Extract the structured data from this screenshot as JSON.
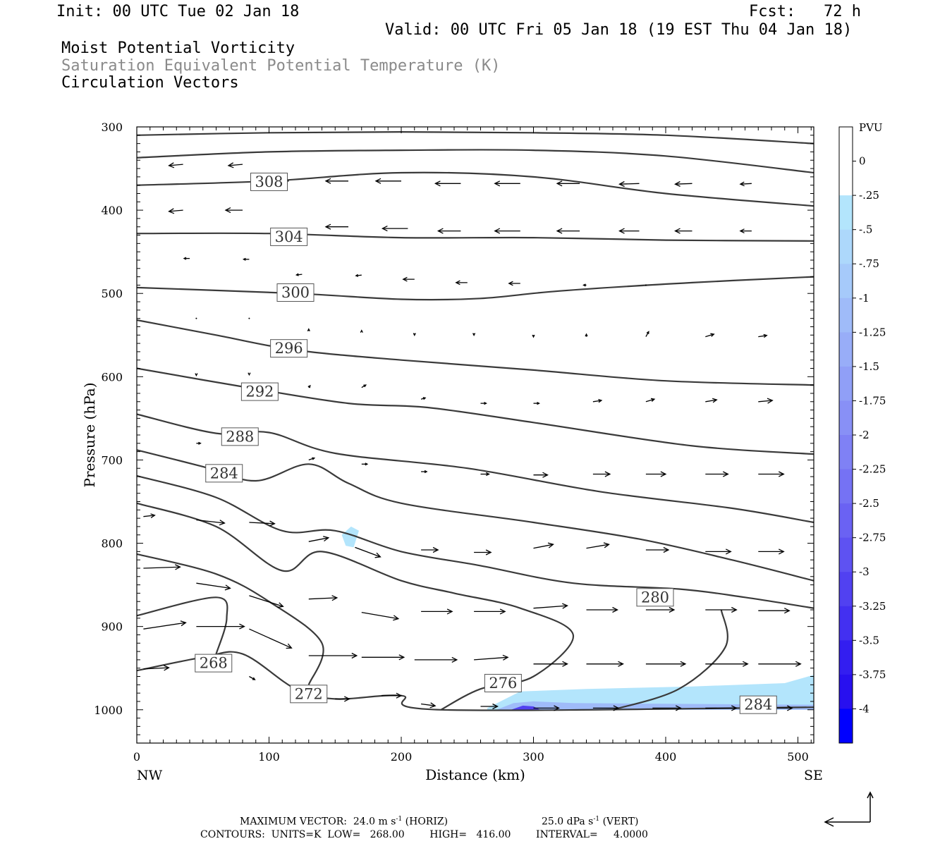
{
  "header": {
    "init": "Init: 00 UTC Tue 02 Jan 18",
    "fcst": "Fcst:   72 h",
    "valid": "Valid: 00 UTC Fri 05 Jan 18 (19 EST Thu 04 Jan 18)",
    "field1": "Moist Potential Vorticity",
    "field2": "Saturation Equivalent Potential Temperature (K)",
    "field3": "Circulation Vectors"
  },
  "footer": {
    "max_vector_prefix": "MAXIMUM VECTOR:  24.0 m s",
    "max_vector_horiz": " (HORIZ)",
    "max_vector_vert_prefix": "25.0 dPa s",
    "max_vector_vert": " (VERT)",
    "exponent": "-1",
    "contours": "CONTOURS:  UNITS=K  LOW=   268.00        HIGH=   416.00        INTERVAL=     4.0000"
  },
  "chart_data": {
    "type": "cross-section",
    "xlabel": "Distance (km)",
    "ylabel": "Pressure (hPa)",
    "x_ticks": [
      0,
      100,
      200,
      300,
      400,
      500
    ],
    "y_ticks": [
      300,
      400,
      500,
      600,
      700,
      800,
      900,
      1000
    ],
    "xlim": [
      0,
      512
    ],
    "ylim": [
      300,
      1040
    ],
    "left_end_label": "NW",
    "right_end_label": "SE",
    "colorbar": {
      "unit": "PVU",
      "labels": [
        "0",
        "-.25",
        "-.5",
        "-.75",
        "-1",
        "-1.25",
        "-1.5",
        "-1.75",
        "-2",
        "-2.25",
        "-2.5",
        "-2.75",
        "-3",
        "-3.25",
        "-3.5",
        "-3.75",
        "-4"
      ],
      "colors": [
        "#ffffff",
        "#ffffff",
        "#b3e5fc",
        "#add8fb",
        "#a6cafa",
        "#9fbbf9",
        "#98adf8",
        "#909ff7",
        "#8890f6",
        "#7f81f5",
        "#7572f4",
        "#6a62f3",
        "#5e52f2",
        "#5141f1",
        "#4330f1",
        "#331ef0",
        "#2810ef",
        "#0000ff"
      ]
    },
    "theta_e_contours": [
      {
        "label": "308",
        "points": [
          [
            0,
            370
          ],
          [
            100,
            365
          ],
          [
            200,
            355
          ],
          [
            300,
            360
          ],
          [
            400,
            380
          ],
          [
            512,
            395
          ]
        ],
        "label_at": [
          100,
          366
        ]
      },
      {
        "label": "304",
        "points": [
          [
            0,
            428
          ],
          [
            100,
            428
          ],
          [
            200,
            433
          ],
          [
            300,
            433
          ],
          [
            400,
            436
          ],
          [
            512,
            437
          ]
        ],
        "label_at": [
          115,
          432
        ]
      },
      {
        "label": "300",
        "points": [
          [
            0,
            493
          ],
          [
            120,
            500
          ],
          [
            200,
            507
          ],
          [
            260,
            506
          ],
          [
            320,
            497
          ],
          [
            420,
            487
          ],
          [
            512,
            480
          ]
        ],
        "label_at": [
          120,
          499
        ]
      },
      {
        "label": "296",
        "points": [
          [
            0,
            532
          ],
          [
            60,
            550
          ],
          [
            120,
            568
          ],
          [
            200,
            580
          ],
          [
            300,
            592
          ],
          [
            400,
            605
          ],
          [
            512,
            610
          ]
        ],
        "label_at": [
          115,
          566
        ]
      },
      {
        "label": "292",
        "points": [
          [
            0,
            590
          ],
          [
            80,
            612
          ],
          [
            160,
            632
          ],
          [
            220,
            637
          ],
          [
            300,
            655
          ],
          [
            420,
            683
          ],
          [
            512,
            693
          ]
        ],
        "label_at": [
          93,
          618
        ]
      },
      {
        "label": "288",
        "points": [
          [
            0,
            645
          ],
          [
            60,
            668
          ],
          [
            100,
            667
          ],
          [
            150,
            692
          ],
          [
            250,
            710
          ],
          [
            350,
            738
          ],
          [
            450,
            758
          ],
          [
            512,
            775
          ]
        ],
        "label_at": [
          78,
          672
        ]
      },
      {
        "label": "284",
        "points": [
          [
            0,
            688
          ],
          [
            50,
            708
          ],
          [
            90,
            725
          ],
          [
            130,
            705
          ],
          [
            160,
            728
          ],
          [
            200,
            752
          ],
          [
            300,
            775
          ],
          [
            380,
            795
          ],
          [
            450,
            820
          ],
          [
            512,
            845
          ]
        ],
        "label_at": [
          66,
          716
        ]
      },
      {
        "label": "280",
        "points": [
          [
            0,
            719
          ],
          [
            60,
            745
          ],
          [
            110,
            785
          ],
          [
            150,
            785
          ],
          [
            200,
            810
          ],
          [
            260,
            827
          ],
          [
            330,
            848
          ],
          [
            410,
            855
          ],
          [
            460,
            865
          ],
          [
            512,
            878
          ]
        ],
        "label_at": [
          392,
          865
        ]
      },
      {
        "label": "276",
        "points": [
          [
            0,
            752
          ],
          [
            60,
            780
          ],
          [
            110,
            833
          ],
          [
            140,
            810
          ],
          [
            200,
            845
          ],
          [
            240,
            860
          ],
          [
            290,
            878
          ],
          [
            330,
            910
          ],
          [
            300,
            960
          ],
          [
            260,
            975
          ],
          [
            230,
            1000
          ]
        ],
        "label_at": [
          277,
          968
        ]
      },
      {
        "label": "284",
        "points": [
          [
            360,
            1000
          ],
          [
            410,
            975
          ],
          [
            445,
            925
          ],
          [
            442,
            880
          ]
        ],
        "label_at": [
          470,
          994
        ]
      },
      {
        "label": "272",
        "points": [
          [
            0,
            813
          ],
          [
            60,
            837
          ],
          [
            100,
            870
          ],
          [
            140,
            920
          ],
          [
            130,
            970
          ]
        ],
        "label_at": [
          130,
          981
        ]
      },
      {
        "label": "268",
        "points": [
          [
            0,
            953
          ],
          [
            50,
            937
          ],
          [
            80,
            933
          ],
          [
            120,
            975
          ],
          [
            150,
            987
          ],
          [
            200,
            983
          ],
          [
            230,
            1000
          ],
          [
            512,
            997
          ]
        ],
        "label_at": [
          58,
          944
        ]
      },
      {
        "label": "",
        "points": [
          [
            0,
            887
          ],
          [
            60,
            865
          ],
          [
            68,
            890
          ],
          [
            60,
            933
          ]
        ],
        "label_at": null
      },
      {
        "label": "",
        "points": [
          [
            0,
            337
          ],
          [
            100,
            330
          ],
          [
            200,
            328
          ],
          [
            300,
            328
          ],
          [
            400,
            335
          ],
          [
            512,
            355
          ]
        ],
        "label_at": null
      },
      {
        "label": "",
        "points": [
          [
            0,
            310
          ],
          [
            100,
            307
          ],
          [
            200,
            306
          ],
          [
            300,
            307
          ],
          [
            400,
            310
          ],
          [
            512,
            320
          ]
        ],
        "label_at": null
      }
    ],
    "negative_pv_regions": [
      {
        "value": -0.25,
        "points": [
          [
            265,
            998
          ],
          [
            290,
            978
          ],
          [
            340,
            975
          ],
          [
            420,
            972
          ],
          [
            490,
            968
          ],
          [
            512,
            958
          ],
          [
            512,
            1000
          ],
          [
            265,
            1000
          ]
        ]
      },
      {
        "value": -1.0,
        "points": [
          [
            272,
            1000
          ],
          [
            285,
            992
          ],
          [
            300,
            990
          ],
          [
            330,
            992
          ],
          [
            512,
            994
          ],
          [
            512,
            1000
          ]
        ]
      },
      {
        "value": -3.0,
        "points": [
          [
            283,
            1000
          ],
          [
            292,
            995
          ],
          [
            300,
            996
          ],
          [
            305,
            1000
          ]
        ]
      },
      {
        "value": -0.25,
        "points": [
          [
            155,
            790
          ],
          [
            162,
            780
          ],
          [
            168,
            785
          ],
          [
            164,
            805
          ],
          [
            158,
            803
          ]
        ]
      }
    ],
    "circulation_vectors": [
      [
        35,
        345,
        -10,
        2
      ],
      [
        80,
        345,
        -10,
        2
      ],
      [
        115,
        365,
        -14,
        0
      ],
      [
        160,
        365,
        -16,
        0
      ],
      [
        200,
        365,
        -18,
        0
      ],
      [
        245,
        368,
        -18,
        0
      ],
      [
        290,
        368,
        -18,
        0
      ],
      [
        335,
        368,
        -16,
        0
      ],
      [
        380,
        368,
        -14,
        1
      ],
      [
        420,
        368,
        -12,
        1
      ],
      [
        465,
        368,
        -8,
        1
      ],
      [
        35,
        400,
        -10,
        2
      ],
      [
        80,
        400,
        -12,
        0
      ],
      [
        160,
        420,
        -16,
        0
      ],
      [
        205,
        422,
        -18,
        0
      ],
      [
        245,
        425,
        -16,
        0
      ],
      [
        290,
        425,
        -18,
        0
      ],
      [
        335,
        425,
        -16,
        0
      ],
      [
        380,
        425,
        -14,
        0
      ],
      [
        420,
        425,
        -12,
        0
      ],
      [
        465,
        425,
        -8,
        0
      ],
      [
        40,
        458,
        -4,
        0
      ],
      [
        85,
        459,
        -4,
        0
      ],
      [
        125,
        477,
        -4,
        1
      ],
      [
        170,
        478,
        -4,
        1
      ],
      [
        210,
        483,
        -8,
        0
      ],
      [
        250,
        487,
        -8,
        0
      ],
      [
        290,
        488,
        -8,
        0
      ],
      [
        340,
        490,
        -2,
        0
      ],
      [
        385,
        490,
        0,
        0
      ],
      [
        45,
        530,
        0,
        0
      ],
      [
        85,
        530,
        0,
        0
      ],
      [
        130,
        545,
        0,
        -3
      ],
      [
        170,
        546,
        0,
        -2
      ],
      [
        210,
        548,
        0,
        3
      ],
      [
        255,
        548,
        0,
        3
      ],
      [
        300,
        550,
        0,
        3
      ],
      [
        340,
        552,
        0,
        -4
      ],
      [
        385,
        552,
        2,
        -8
      ],
      [
        430,
        552,
        6,
        -4
      ],
      [
        470,
        552,
        6,
        -2
      ],
      [
        45,
        597,
        0,
        2
      ],
      [
        85,
        597,
        0,
        1
      ],
      [
        130,
        613,
        1,
        -3
      ],
      [
        170,
        613,
        3,
        -4
      ],
      [
        215,
        627,
        3,
        -2
      ],
      [
        260,
        632,
        4,
        0
      ],
      [
        300,
        632,
        4,
        0
      ],
      [
        345,
        630,
        6,
        -2
      ],
      [
        385,
        630,
        6,
        -4
      ],
      [
        430,
        630,
        8,
        -3
      ],
      [
        470,
        630,
        10,
        -2
      ],
      [
        45,
        680,
        3,
        0
      ],
      [
        130,
        700,
        4,
        -3
      ],
      [
        170,
        705,
        4,
        0
      ],
      [
        215,
        714,
        4,
        0
      ],
      [
        260,
        717,
        6,
        0
      ],
      [
        300,
        718,
        10,
        0
      ],
      [
        345,
        717,
        12,
        0
      ],
      [
        385,
        717,
        14,
        0
      ],
      [
        430,
        717,
        16,
        0
      ],
      [
        470,
        717,
        18,
        0
      ],
      [
        5,
        768,
        8,
        -2
      ],
      [
        45,
        772,
        20,
        5
      ],
      [
        85,
        775,
        18,
        2
      ],
      [
        130,
        798,
        14,
        -6
      ],
      [
        165,
        805,
        18,
        15
      ],
      [
        215,
        808,
        12,
        0
      ],
      [
        255,
        811,
        12,
        0
      ],
      [
        300,
        806,
        14,
        -6
      ],
      [
        340,
        806,
        16,
        -6
      ],
      [
        385,
        808,
        16,
        0
      ],
      [
        430,
        810,
        18,
        0
      ],
      [
        470,
        810,
        18,
        0
      ],
      [
        5,
        830,
        26,
        -2
      ],
      [
        45,
        848,
        24,
        8
      ],
      [
        85,
        863,
        24,
        17
      ],
      [
        130,
        867,
        20,
        -2
      ],
      [
        170,
        883,
        26,
        10
      ],
      [
        215,
        882,
        22,
        0
      ],
      [
        255,
        882,
        22,
        0
      ],
      [
        300,
        878,
        24,
        -4
      ],
      [
        340,
        880,
        22,
        0
      ],
      [
        385,
        880,
        20,
        0
      ],
      [
        430,
        880,
        22,
        0
      ],
      [
        470,
        881,
        22,
        0
      ],
      [
        5,
        903,
        30,
        -10
      ],
      [
        45,
        900,
        34,
        0
      ],
      [
        85,
        903,
        30,
        30
      ],
      [
        130,
        935,
        34,
        0
      ],
      [
        170,
        937,
        30,
        0
      ],
      [
        210,
        940,
        30,
        0
      ],
      [
        255,
        940,
        24,
        -4
      ],
      [
        300,
        945,
        24,
        0
      ],
      [
        340,
        945,
        26,
        0
      ],
      [
        385,
        945,
        28,
        0
      ],
      [
        430,
        945,
        30,
        0
      ],
      [
        470,
        945,
        30,
        0
      ],
      [
        5,
        951,
        18,
        -2
      ],
      [
        85,
        960,
        4,
        5
      ],
      [
        150,
        987,
        10,
        0
      ],
      [
        185,
        983,
        14,
        0
      ],
      [
        215,
        993,
        10,
        3
      ],
      [
        260,
        996,
        12,
        0
      ],
      [
        300,
        998,
        18,
        0
      ],
      [
        345,
        998,
        18,
        0
      ],
      [
        390,
        998,
        20,
        0
      ],
      [
        430,
        998,
        22,
        0
      ],
      [
        470,
        998,
        24,
        0
      ]
    ]
  }
}
